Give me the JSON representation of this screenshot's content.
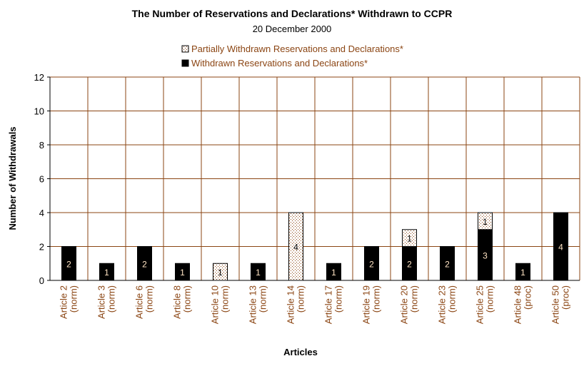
{
  "chart_data": {
    "type": "bar",
    "stacked": true,
    "title": "The Number of Reservations and Declarations* Withdrawn to CCPR",
    "subtitle": "20 December 2000",
    "xlabel": "Articles",
    "ylabel": "Number of Withdrawals",
    "ylim": [
      0,
      12
    ],
    "yticks": [
      0,
      2,
      4,
      6,
      8,
      10,
      12
    ],
    "grid": true,
    "legend_position": "top-center",
    "categories": [
      [
        "Article 2",
        "(norm)"
      ],
      [
        "Article 3",
        "(norm)"
      ],
      [
        "Article 6",
        "(norm)"
      ],
      [
        "Article 8",
        "(norm)"
      ],
      [
        "Article 10",
        "(norm)"
      ],
      [
        "Article 13",
        "(norm)"
      ],
      [
        "Article 14",
        "(norm)"
      ],
      [
        "Article 17",
        "(norm)"
      ],
      [
        "Article 19",
        "(norm)"
      ],
      [
        "Article 20",
        "(norm)"
      ],
      [
        "Article 23",
        "(norm)"
      ],
      [
        "Article 25",
        "(norm)"
      ],
      [
        "Article 48",
        "(proc)"
      ],
      [
        "Article 50",
        "(proc)"
      ]
    ],
    "series": [
      {
        "name": "Withdrawn Reservations and Declarations*",
        "pattern": "solid",
        "color": "#000000",
        "values": [
          2,
          1,
          2,
          1,
          0,
          1,
          0,
          1,
          2,
          2,
          2,
          3,
          1,
          4
        ]
      },
      {
        "name": "Partially Withdrawn Reservations and Declarations*",
        "pattern": "dotted",
        "color": "#FFFFFF",
        "values": [
          0,
          0,
          0,
          0,
          1,
          0,
          4,
          0,
          0,
          1,
          0,
          1,
          0,
          0
        ]
      }
    ],
    "legend_order": [
      1,
      0
    ],
    "colors": {
      "axis_text": "#8B4513",
      "grid": "#8B4513",
      "label_on_dark": "#FFE4C4",
      "label_on_light": "#000000"
    }
  }
}
